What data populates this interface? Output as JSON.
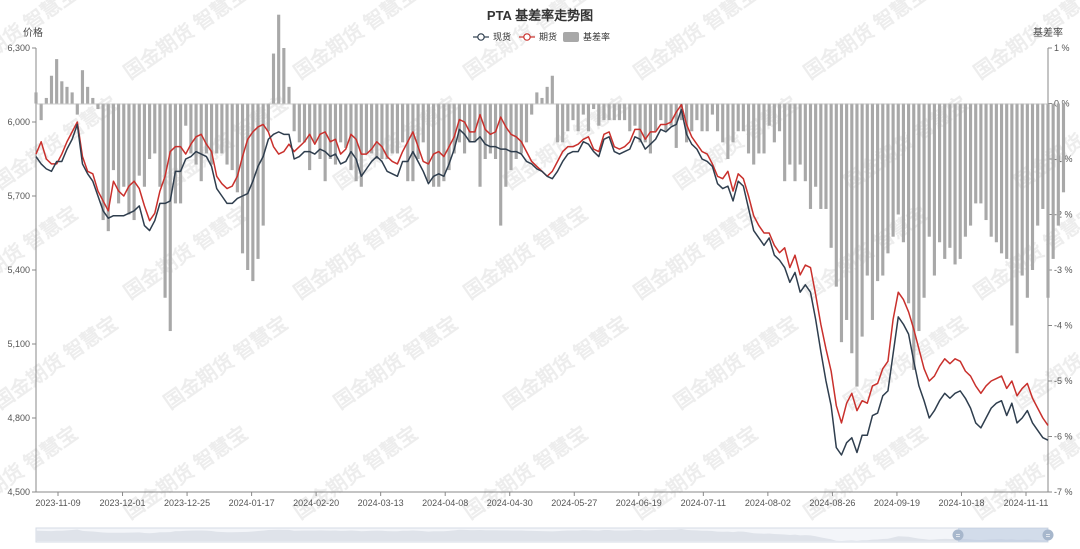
{
  "chart_data": {
    "type": "line",
    "title": "PTA 基差率走势图",
    "ylabel_left": "价格",
    "ylabel_right": "基差率",
    "watermark": "国金期货 智慧宝",
    "ylim_left": [
      4500,
      6300
    ],
    "left_ticks": [
      "6,300",
      "6,000",
      "5,700",
      "5,400",
      "5,100",
      "4,800",
      "4,500"
    ],
    "ylim_right": [
      -7,
      1
    ],
    "right_ticks": [
      "1 %",
      "0 %",
      "-1 %",
      "-2 %",
      "-3 %",
      "-4 %",
      "-5 %",
      "-6 %",
      "-7 %"
    ],
    "x_tick_labels": [
      "2023-11-09",
      "2023-12-01",
      "2023-12-25",
      "2024-01-17",
      "2024-02-20",
      "2024-03-13",
      "2024-04-08",
      "2024-04-30",
      "2024-05-27",
      "2024-06-19",
      "2024-07-11",
      "2024-08-02",
      "2024-08-26",
      "2024-09-19",
      "2024-10-18",
      "2024-11-11"
    ],
    "legend": [
      "现货",
      "期货",
      "基差率"
    ],
    "colors": {
      "spot": "#2f3e4e",
      "futures": "#c9302c",
      "basis": "#a8a8a8"
    },
    "series": [
      {
        "name": "现货",
        "values": [
          5860,
          5830,
          5810,
          5800,
          5840,
          5840,
          5890,
          5930,
          5990,
          5830,
          5790,
          5760,
          5700,
          5640,
          5610,
          5620,
          5620,
          5620,
          5630,
          5640,
          5660,
          5580,
          5560,
          5600,
          5670,
          5670,
          5680,
          5800,
          5800,
          5850,
          5860,
          5880,
          5870,
          5860,
          5820,
          5730,
          5700,
          5670,
          5670,
          5690,
          5700,
          5710,
          5760,
          5820,
          5860,
          5930,
          5950,
          5960,
          5950,
          5950,
          5850,
          5860,
          5880,
          5880,
          5870,
          5890,
          5880,
          5860,
          5870,
          5830,
          5840,
          5880,
          5850,
          5780,
          5810,
          5840,
          5860,
          5840,
          5800,
          5790,
          5780,
          5840,
          5840,
          5880,
          5840,
          5800,
          5750,
          5780,
          5790,
          5780,
          5830,
          5890,
          5970,
          5950,
          5920,
          5920,
          5940,
          5910,
          5900,
          5900,
          5890,
          5890,
          5880,
          5880,
          5870,
          5840,
          5830,
          5810,
          5800,
          5780,
          5770,
          5800,
          5840,
          5870,
          5880,
          5880,
          5920,
          5910,
          5880,
          5860,
          5930,
          5940,
          5880,
          5870,
          5880,
          5890,
          5940,
          5930,
          5890,
          5910,
          5930,
          5970,
          5960,
          5980,
          5990,
          6050,
          5950,
          5910,
          5890,
          5850,
          5840,
          5820,
          5750,
          5730,
          5740,
          5680,
          5760,
          5740,
          5650,
          5560,
          5530,
          5500,
          5530,
          5460,
          5440,
          5410,
          5350,
          5390,
          5310,
          5340,
          5310,
          5200,
          5070,
          4950,
          4850,
          4680,
          4650,
          4700,
          4720,
          4660,
          4730,
          4730,
          4810,
          4820,
          4890,
          4910,
          5060,
          5210,
          5180,
          5140,
          5030,
          4930,
          4870,
          4800,
          4830,
          4870,
          4900,
          4880,
          4900,
          4910,
          4880,
          4840,
          4780,
          4760,
          4800,
          4840,
          4860,
          4870,
          4810,
          4860,
          4780,
          4800,
          4830,
          4780,
          4750,
          4720,
          4710
        ]
      },
      {
        "name": "期货",
        "values": [
          5870,
          5920,
          5850,
          5830,
          5830,
          5870,
          5920,
          5960,
          6000,
          5860,
          5800,
          5790,
          5720,
          5680,
          5640,
          5760,
          5720,
          5700,
          5740,
          5760,
          5730,
          5660,
          5600,
          5630,
          5720,
          5780,
          5880,
          5900,
          5900,
          5870,
          5910,
          5940,
          5950,
          5910,
          5880,
          5780,
          5750,
          5730,
          5740,
          5780,
          5860,
          5930,
          5960,
          5980,
          5990,
          5960,
          5900,
          5870,
          5880,
          5910,
          5880,
          5900,
          5920,
          5950,
          5910,
          5950,
          5960,
          5920,
          5930,
          5870,
          5890,
          5950,
          5930,
          5870,
          5870,
          5890,
          5920,
          5900,
          5860,
          5840,
          5830,
          5880,
          5920,
          5960,
          5900,
          5840,
          5830,
          5870,
          5880,
          5860,
          5900,
          5940,
          6010,
          6000,
          5960,
          5960,
          6030,
          5970,
          5950,
          5960,
          6020,
          5980,
          5950,
          5940,
          5920,
          5880,
          5840,
          5820,
          5800,
          5780,
          5800,
          5840,
          5880,
          5900,
          5900,
          5910,
          5930,
          5940,
          5890,
          5880,
          5950,
          5960,
          5900,
          5890,
          5900,
          5920,
          5970,
          5970,
          5930,
          5960,
          5960,
          5990,
          5990,
          6000,
          6040,
          6070,
          5990,
          5940,
          5910,
          5880,
          5870,
          5830,
          5780,
          5770,
          5800,
          5720,
          5790,
          5770,
          5700,
          5620,
          5580,
          5550,
          5550,
          5500,
          5470,
          5490,
          5410,
          5460,
          5380,
          5420,
          5410,
          5300,
          5180,
          5080,
          4990,
          4850,
          4780,
          4860,
          4900,
          4830,
          4870,
          4860,
          4930,
          4940,
          5000,
          5030,
          5200,
          5310,
          5280,
          5230,
          5160,
          5080,
          5000,
          4950,
          4970,
          5010,
          5040,
          5020,
          5040,
          5030,
          4990,
          4970,
          4930,
          4900,
          4930,
          4950,
          4960,
          4970,
          4920,
          4950,
          4890,
          4920,
          4940,
          4880,
          4840,
          4800,
          4770
        ]
      },
      {
        "name": "基差率",
        "values": [
          0.2,
          -0.3,
          0.1,
          0.5,
          0.8,
          0.4,
          0.3,
          0.2,
          -0.2,
          0.6,
          0.3,
          0.1,
          -0.1,
          -2.1,
          -2.3,
          -1.2,
          -1.8,
          -1.5,
          -2.0,
          -2.1,
          -1.3,
          -1.5,
          -1.0,
          -0.9,
          -1.5,
          -3.5,
          -4.1,
          -1.8,
          -1.8,
          -0.4,
          -0.9,
          -1.1,
          -1.4,
          -0.9,
          -1.1,
          -0.9,
          -0.9,
          -1.1,
          -1.2,
          -1.6,
          -2.7,
          -3.0,
          -3.2,
          -2.8,
          -2.2,
          -0.5,
          0.9,
          1.6,
          1.0,
          0.3,
          -0.5,
          -0.7,
          -0.7,
          -1.2,
          -0.7,
          -1.0,
          -1.4,
          -1.0,
          -1.1,
          -0.7,
          -0.8,
          -1.2,
          -1.4,
          -1.5,
          -0.9,
          -0.9,
          -1.0,
          -1.0,
          -1.0,
          -0.9,
          -0.9,
          -0.7,
          -1.4,
          -1.4,
          -1.0,
          -0.7,
          -1.4,
          -1.5,
          -1.5,
          -1.4,
          -1.2,
          -0.9,
          -0.7,
          -0.9,
          -0.7,
          -0.7,
          -1.5,
          -1.0,
          -0.9,
          -1.0,
          -2.2,
          -1.5,
          -1.2,
          -1.0,
          -0.9,
          -0.7,
          -0.2,
          0.2,
          0.1,
          0.3,
          0.5,
          -0.7,
          -0.7,
          -0.5,
          -0.3,
          -0.5,
          -0.2,
          -0.5,
          -0.1,
          -0.4,
          -0.3,
          -0.3,
          -0.3,
          -0.3,
          -0.3,
          -0.5,
          -0.4,
          -0.7,
          -0.7,
          -0.9,
          -0.5,
          -0.3,
          -0.5,
          -0.4,
          -0.8,
          -0.3,
          -0.7,
          -0.5,
          -0.3,
          -0.5,
          -0.5,
          -0.2,
          -0.5,
          -0.7,
          -1.0,
          -0.7,
          -0.5,
          -0.5,
          -0.9,
          -1.1,
          -0.9,
          -0.9,
          -0.4,
          -0.7,
          -0.5,
          -1.4,
          -1.1,
          -1.4,
          -1.1,
          -1.4,
          -1.9,
          -1.5,
          -1.9,
          -1.9,
          -2.6,
          -3.3,
          -4.3,
          -3.9,
          -4.5,
          -5.1,
          -4.2,
          -3.1,
          -3.9,
          -3.2,
          -3.1,
          -2.7,
          -2.4,
          -2.0,
          -2.5,
          -3.6,
          -4.8,
          -4.1,
          -3.5,
          -2.4,
          -3.1,
          -2.5,
          -2.8,
          -2.6,
          -2.9,
          -2.8,
          -2.4,
          -2.2,
          -1.8,
          -1.8,
          -2.1,
          -2.4,
          -2.5,
          -2.7,
          -2.8,
          -4.0,
          -4.5,
          -3.1,
          -3.5,
          -3.0,
          -2.2,
          -1.9,
          -3.5,
          -2.8,
          -2.2,
          -1.6
        ]
      }
    ]
  }
}
